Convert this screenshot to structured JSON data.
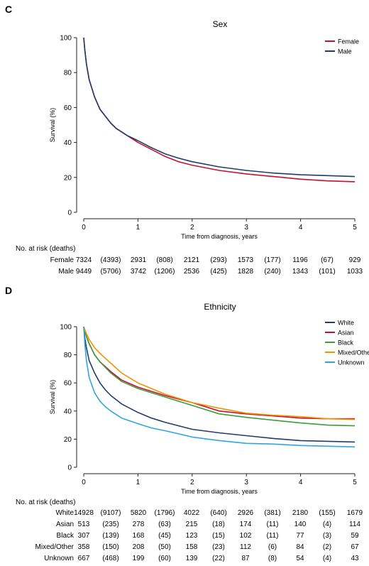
{
  "chart_data": [
    {
      "type": "line",
      "panel_label": "C",
      "title": "Sex",
      "xlabel": "Time from diagnosis, years",
      "ylabel": "Survival (%)",
      "xlim": [
        0,
        5
      ],
      "ylim": [
        0,
        100
      ],
      "xticks": [
        "0",
        "1",
        "2",
        "3",
        "4",
        "5"
      ],
      "yticks": [
        "0",
        "20",
        "40",
        "60",
        "80",
        "100"
      ],
      "grid": false,
      "legend_position": "top-right",
      "series": [
        {
          "name": "Female",
          "color": "#c8102e",
          "x": [
            0,
            0.02,
            0.05,
            0.1,
            0.2,
            0.3,
            0.4,
            0.5,
            0.6,
            0.7,
            0.8,
            0.9,
            1.0,
            1.25,
            1.5,
            1.75,
            2.0,
            2.5,
            3.0,
            3.5,
            4.0,
            4.5,
            5.0
          ],
          "y": [
            100,
            93,
            85,
            76,
            66,
            59,
            55,
            51,
            48,
            46,
            44,
            42,
            40,
            36,
            32,
            29,
            27,
            24,
            22,
            20.5,
            19,
            18,
            17.5
          ]
        },
        {
          "name": "Male",
          "color": "#1f3d6d",
          "x": [
            0,
            0.02,
            0.05,
            0.1,
            0.2,
            0.3,
            0.4,
            0.5,
            0.6,
            0.7,
            0.8,
            0.9,
            1.0,
            1.25,
            1.5,
            1.75,
            2.0,
            2.5,
            3.0,
            3.5,
            4.0,
            4.5,
            5.0
          ],
          "y": [
            100,
            93,
            85,
            76,
            66,
            59,
            55,
            51,
            48,
            46,
            44,
            42.5,
            41,
            37,
            33.5,
            31,
            29,
            26,
            24,
            22.5,
            21.5,
            21,
            20.5
          ]
        }
      ],
      "risk_table": {
        "title": "No. at risk (deaths)",
        "rows": [
          {
            "group": "Female",
            "cells": [
              "7324",
              "(4393)",
              "2931",
              "(808)",
              "2121",
              "(293)",
              "1573",
              "(177)",
              "1196",
              "(67)",
              "929"
            ]
          },
          {
            "group": "Male",
            "cells": [
              "9449",
              "(5706)",
              "3742",
              "(1206)",
              "2536",
              "(425)",
              "1828",
              "(240)",
              "1343",
              "(101)",
              "1033"
            ]
          }
        ]
      }
    },
    {
      "type": "line",
      "panel_label": "D",
      "title": "Ethnicity",
      "xlabel": "Time from diagnosis, years",
      "ylabel": "Survival (%)",
      "xlim": [
        0,
        5
      ],
      "ylim": [
        0,
        100
      ],
      "xticks": [
        "0",
        "1",
        "2",
        "3",
        "4",
        "5"
      ],
      "yticks": [
        "0",
        "20",
        "40",
        "60",
        "80",
        "100"
      ],
      "grid": false,
      "legend_position": "top-right",
      "series": [
        {
          "name": "White",
          "color": "#1f3d6d",
          "x": [
            0,
            0.02,
            0.05,
            0.1,
            0.2,
            0.3,
            0.4,
            0.5,
            0.7,
            1.0,
            1.25,
            1.5,
            2.0,
            2.5,
            3.0,
            3.5,
            4.0,
            4.5,
            5.0
          ],
          "y": [
            100,
            92,
            85,
            76,
            67,
            60,
            55,
            51,
            45,
            39,
            35,
            32,
            27,
            24.5,
            22.5,
            20.5,
            19,
            18.5,
            18
          ]
        },
        {
          "name": "Asian",
          "color": "#c8102e",
          "x": [
            0,
            0.05,
            0.1,
            0.2,
            0.3,
            0.5,
            0.7,
            1.0,
            1.25,
            1.5,
            2.0,
            2.5,
            3.0,
            3.5,
            4.0,
            4.5,
            5.0
          ],
          "y": [
            100,
            93,
            88,
            80,
            75,
            68,
            62,
            57,
            54,
            51,
            46,
            40,
            38,
            36.5,
            35,
            34.5,
            34.5
          ]
        },
        {
          "name": "Black",
          "color": "#3a9e3a",
          "x": [
            0,
            0.05,
            0.1,
            0.2,
            0.3,
            0.5,
            0.7,
            1.0,
            1.25,
            1.5,
            2.0,
            2.5,
            3.0,
            3.5,
            4.0,
            4.5,
            5.0
          ],
          "y": [
            100,
            93,
            88,
            80,
            75,
            67,
            61,
            56,
            53,
            50,
            44,
            38,
            35.5,
            33.5,
            31.5,
            30,
            29.5
          ]
        },
        {
          "name": "Mixed/Other",
          "color": "#f39200",
          "x": [
            0,
            0.05,
            0.1,
            0.2,
            0.3,
            0.5,
            0.7,
            1.0,
            1.25,
            1.5,
            2.0,
            2.5,
            3.0,
            3.5,
            4.0,
            4.5,
            5.0
          ],
          "y": [
            100,
            95,
            91,
            85,
            81,
            74,
            67,
            60,
            56,
            52,
            46,
            42,
            38.5,
            37,
            36,
            34.5,
            34
          ]
        },
        {
          "name": "Unknown",
          "color": "#2ea7e0",
          "x": [
            0,
            0.02,
            0.05,
            0.1,
            0.2,
            0.3,
            0.4,
            0.5,
            0.7,
            1.0,
            1.25,
            1.5,
            2.0,
            2.5,
            3.0,
            3.5,
            4.0,
            4.5,
            5.0
          ],
          "y": [
            100,
            88,
            76,
            64,
            53,
            47,
            43,
            40,
            35,
            31,
            28,
            26,
            21.5,
            19,
            17,
            16.5,
            15.5,
            15,
            14.5
          ]
        }
      ],
      "risk_table": {
        "title": "No. at risk (deaths)",
        "rows": [
          {
            "group": "White",
            "cells": [
              "14928",
              "(9107)",
              "5820",
              "(1796)",
              "4022",
              "(640)",
              "2926",
              "(381)",
              "2180",
              "(155)",
              "1679"
            ]
          },
          {
            "group": "Asian",
            "cells": [
              "513",
              "(235)",
              "278",
              "(63)",
              "215",
              "(18)",
              "174",
              "(11)",
              "140",
              "(4)",
              "114"
            ]
          },
          {
            "group": "Black",
            "cells": [
              "307",
              "(139)",
              "168",
              "(45)",
              "123",
              "(15)",
              "102",
              "(11)",
              "77",
              "(3)",
              "59"
            ]
          },
          {
            "group": "Mixed/Other",
            "cells": [
              "358",
              "(150)",
              "208",
              "(50)",
              "158",
              "(23)",
              "112",
              "(6)",
              "84",
              "(2)",
              "67"
            ]
          },
          {
            "group": "Unknown",
            "cells": [
              "667",
              "(468)",
              "199",
              "(60)",
              "139",
              "(22)",
              "87",
              "(8)",
              "54",
              "(4)",
              "43"
            ]
          }
        ]
      }
    }
  ]
}
